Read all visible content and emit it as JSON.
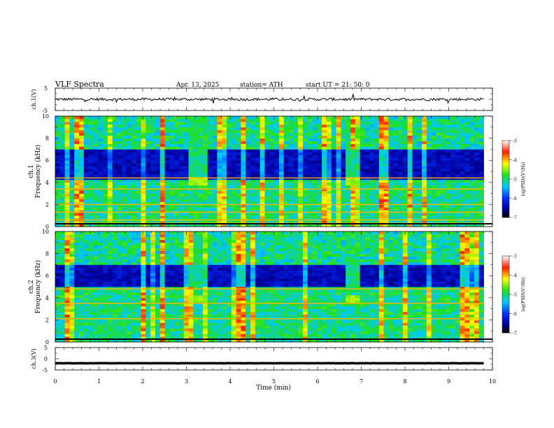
{
  "header": {
    "title": "VLF  Spectra",
    "date": "Apr. 13, 2025",
    "station": "station= ATH",
    "start": "start  UT  =    21: 50: 0"
  },
  "chart_data": [
    {
      "type": "line",
      "panel": "ch1-waveform",
      "ylabel": "ch.1(V)",
      "ylim": [
        -5,
        5
      ],
      "yticks": [
        "5",
        "-5"
      ],
      "xlim": [
        0,
        10
      ],
      "trace_level": 0,
      "trace_noise": 0.6,
      "trace_end_min": 9.8
    },
    {
      "type": "heatmap",
      "panel": "ch1-spectrogram",
      "ylabel_top": "ch.1",
      "ylabel": "Frequency (kHz)",
      "ylim": [
        0,
        10
      ],
      "yticks": [
        "0",
        "2",
        "4",
        "6",
        "8",
        "10"
      ],
      "xlim": [
        0,
        10
      ],
      "data_end_min": 9.8,
      "colorbar": {
        "label": "log(PSD)(V²/Hz)",
        "ticks": [
          "-3",
          "-4",
          "-5",
          "-6",
          "-7"
        ],
        "range": [
          -7,
          -3
        ]
      },
      "features": {
        "quiet_band_khz": [
          4.3,
          7.0
        ],
        "strong_lines_khz": [
          0.3,
          0.6,
          1.3,
          2.0,
          3.4,
          4.4
        ],
        "bursts": [
          {
            "t_min": [
              3.1,
              3.5
            ],
            "f_khz": [
              3.8,
              4.4
            ]
          },
          {
            "t_min": [
              6.6,
              6.95
            ],
            "f_khz": [
              3.8,
              4.4
            ]
          }
        ]
      }
    },
    {
      "type": "heatmap",
      "panel": "ch2-spectrogram",
      "ylabel_top": "ch.2",
      "ylabel": "Frequency (kHz)",
      "ylim": [
        0,
        10
      ],
      "yticks": [
        "0",
        "2",
        "4",
        "6",
        "8",
        "10"
      ],
      "xlim": [
        0,
        10
      ],
      "data_end_min": 9.8,
      "colorbar": {
        "label": "log(PSD)(V²/Hz)",
        "ticks": [
          "-3",
          "-4",
          "-5",
          "-6",
          "-7"
        ],
        "range": [
          -7,
          -3
        ]
      },
      "features": {
        "quiet_band_khz": [
          5.0,
          7.0
        ],
        "strong_lines_khz": [
          2.1,
          3.5,
          4.8
        ],
        "bursts": [
          {
            "t_min": [
              3.1,
              3.5
            ],
            "f_khz": [
              3.6,
              4.2
            ]
          },
          {
            "t_min": [
              6.6,
              6.95
            ],
            "f_khz": [
              3.6,
              4.2
            ]
          }
        ]
      }
    },
    {
      "type": "line",
      "panel": "ch3-waveform",
      "ylabel": "ch.3(V)",
      "ylim": [
        -5,
        5
      ],
      "yticks": [
        "5",
        "0",
        "-5"
      ],
      "xlim": [
        0,
        10
      ],
      "trace_level": -2,
      "trace_noise": 0.05,
      "trace_end_min": 9.8,
      "xlabel": "Time  (min)",
      "xticks": [
        "0",
        "1",
        "2",
        "3",
        "4",
        "5",
        "6",
        "7",
        "8",
        "9",
        "10"
      ]
    }
  ]
}
